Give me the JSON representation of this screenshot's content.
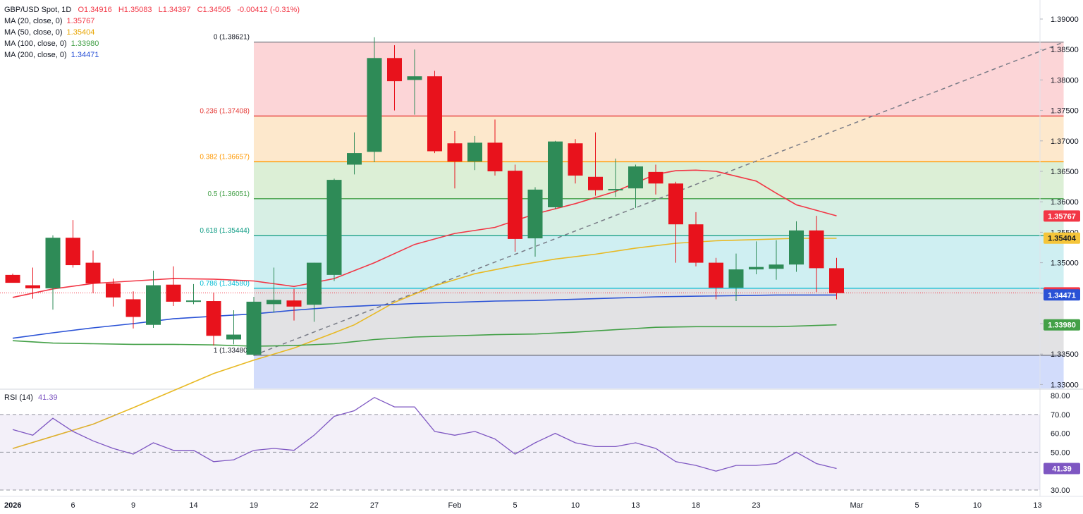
{
  "header": {
    "symbol": "GBP/USD Spot, 1D",
    "open": "O1.34916",
    "high": "H1.35083",
    "low": "L1.34397",
    "close": "C1.34505",
    "change": "-0.00412 (-0.31%)"
  },
  "legend": {
    "ma20": {
      "label": "MA (20, close, 0)",
      "value": "1.35767",
      "color": "#f23645"
    },
    "ma50": {
      "label": "MA (50, close, 0)",
      "value": "1.35404",
      "color": "#e8b923"
    },
    "ma100": {
      "label": "MA (100, close, 0)",
      "value": "1.33980",
      "color": "#43a047"
    },
    "ma200": {
      "label": "MA (200, close, 0)",
      "value": "1.34471",
      "color": "#2a52d6"
    }
  },
  "rsi": {
    "label": "RSI (14)",
    "value": "41.39"
  },
  "chart_data": {
    "type": "candlestick",
    "y_axis_ticks": [
      "1.39000",
      "1.38500",
      "1.38000",
      "1.37500",
      "1.37000",
      "1.36500",
      "1.36000",
      "1.35500",
      "1.35000",
      "1.34500",
      "1.34000",
      "1.33500",
      "1.33000"
    ],
    "ylim": [
      1.3288,
      1.3915
    ],
    "x_tick_labels": [
      {
        "label": "2026",
        "bar": 0
      },
      {
        "label": "6",
        "bar": 3
      },
      {
        "label": "9",
        "bar": 6
      },
      {
        "label": "14",
        "bar": 9
      },
      {
        "label": "19",
        "bar": 12
      },
      {
        "label": "22",
        "bar": 15
      },
      {
        "label": "27",
        "bar": 18
      },
      {
        "label": "Feb",
        "bar": 22
      },
      {
        "label": "5",
        "bar": 25
      },
      {
        "label": "10",
        "bar": 28
      },
      {
        "label": "13",
        "bar": 31
      },
      {
        "label": "18",
        "bar": 34
      },
      {
        "label": "23",
        "bar": 37
      },
      {
        "label": "Mar",
        "bar": 42
      },
      {
        "label": "5",
        "bar": 45
      },
      {
        "label": "10",
        "bar": 48
      },
      {
        "label": "13",
        "bar": 51
      }
    ],
    "candles": [
      {
        "o": 1.348,
        "h": 1.3482,
        "l": 1.3468,
        "c": 1.3467
      },
      {
        "o": 1.3463,
        "h": 1.3492,
        "l": 1.3441,
        "c": 1.3458
      },
      {
        "o": 1.3458,
        "h": 1.3545,
        "l": 1.3423,
        "c": 1.3541
      },
      {
        "o": 1.3541,
        "h": 1.357,
        "l": 1.3492,
        "c": 1.3496
      },
      {
        "o": 1.35,
        "h": 1.352,
        "l": 1.345,
        "c": 1.3466
      },
      {
        "o": 1.3466,
        "h": 1.3474,
        "l": 1.3428,
        "c": 1.3443
      },
      {
        "o": 1.344,
        "h": 1.3453,
        "l": 1.3392,
        "c": 1.3411
      },
      {
        "o": 1.3398,
        "h": 1.3487,
        "l": 1.3393,
        "c": 1.3463
      },
      {
        "o": 1.3464,
        "h": 1.3494,
        "l": 1.3429,
        "c": 1.3436
      },
      {
        "o": 1.3436,
        "h": 1.3465,
        "l": 1.3432,
        "c": 1.3438
      },
      {
        "o": 1.3437,
        "h": 1.3451,
        "l": 1.3364,
        "c": 1.338
      },
      {
        "o": 1.3374,
        "h": 1.3422,
        "l": 1.3366,
        "c": 1.3382
      },
      {
        "o": 1.3349,
        "h": 1.3444,
        "l": 1.3347,
        "c": 1.3436
      },
      {
        "o": 1.3432,
        "h": 1.3492,
        "l": 1.3418,
        "c": 1.3439
      },
      {
        "o": 1.3438,
        "h": 1.3457,
        "l": 1.3405,
        "c": 1.3428
      },
      {
        "o": 1.3431,
        "h": 1.35,
        "l": 1.3403,
        "c": 1.35
      },
      {
        "o": 1.348,
        "h": 1.3638,
        "l": 1.347,
        "c": 1.3636
      },
      {
        "o": 1.3661,
        "h": 1.3714,
        "l": 1.3645,
        "c": 1.368
      },
      {
        "o": 1.3682,
        "h": 1.387,
        "l": 1.3665,
        "c": 1.3836
      },
      {
        "o": 1.3836,
        "h": 1.3857,
        "l": 1.375,
        "c": 1.3798
      },
      {
        "o": 1.38,
        "h": 1.385,
        "l": 1.3743,
        "c": 1.3806
      },
      {
        "o": 1.3806,
        "h": 1.3815,
        "l": 1.368,
        "c": 1.3683
      },
      {
        "o": 1.3696,
        "h": 1.3716,
        "l": 1.3622,
        "c": 1.3666
      },
      {
        "o": 1.3666,
        "h": 1.3708,
        "l": 1.3652,
        "c": 1.3697
      },
      {
        "o": 1.3697,
        "h": 1.3735,
        "l": 1.3643,
        "c": 1.365
      },
      {
        "o": 1.3651,
        "h": 1.3661,
        "l": 1.3518,
        "c": 1.3539
      },
      {
        "o": 1.354,
        "h": 1.3624,
        "l": 1.351,
        "c": 1.362
      },
      {
        "o": 1.3591,
        "h": 1.37,
        "l": 1.3588,
        "c": 1.3699
      },
      {
        "o": 1.3696,
        "h": 1.3703,
        "l": 1.363,
        "c": 1.3643
      },
      {
        "o": 1.3641,
        "h": 1.3714,
        "l": 1.361,
        "c": 1.3619
      },
      {
        "o": 1.362,
        "h": 1.3671,
        "l": 1.3608,
        "c": 1.3621
      },
      {
        "o": 1.3622,
        "h": 1.3661,
        "l": 1.359,
        "c": 1.3658
      },
      {
        "o": 1.3649,
        "h": 1.3661,
        "l": 1.3612,
        "c": 1.363
      },
      {
        "o": 1.363,
        "h": 1.3633,
        "l": 1.35,
        "c": 1.3563
      },
      {
        "o": 1.3563,
        "h": 1.3583,
        "l": 1.3494,
        "c": 1.35
      },
      {
        "o": 1.35,
        "h": 1.3508,
        "l": 1.344,
        "c": 1.3459
      },
      {
        "o": 1.3459,
        "h": 1.3515,
        "l": 1.3437,
        "c": 1.3489
      },
      {
        "o": 1.3489,
        "h": 1.3535,
        "l": 1.3481,
        "c": 1.3493
      },
      {
        "o": 1.349,
        "h": 1.3537,
        "l": 1.3472,
        "c": 1.3497
      },
      {
        "o": 1.3497,
        "h": 1.3568,
        "l": 1.3485,
        "c": 1.3553
      },
      {
        "o": 1.3553,
        "h": 1.3577,
        "l": 1.3452,
        "c": 1.3491
      },
      {
        "o": 1.3491,
        "h": 1.3508,
        "l": 1.344,
        "c": 1.345
      }
    ],
    "moving_averages": [
      {
        "name": "MA (20, close, 0)",
        "color": "#f23645",
        "points": [
          [
            0,
            1.3443
          ],
          [
            2,
            1.3457
          ],
          [
            4,
            1.3466
          ],
          [
            6,
            1.347
          ],
          [
            8,
            1.3474
          ],
          [
            10,
            1.3473
          ],
          [
            12,
            1.347
          ],
          [
            14,
            1.3461
          ],
          [
            16,
            1.3474
          ],
          [
            18,
            1.35
          ],
          [
            20,
            1.353
          ],
          [
            22,
            1.3548
          ],
          [
            24,
            1.3558
          ],
          [
            26,
            1.358
          ],
          [
            28,
            1.3597
          ],
          [
            30,
            1.3617
          ],
          [
            32,
            1.3645
          ],
          [
            33,
            1.3651
          ],
          [
            34,
            1.3652
          ],
          [
            35,
            1.365
          ],
          [
            37,
            1.3634
          ],
          [
            38,
            1.3614
          ],
          [
            39,
            1.3595
          ],
          [
            41,
            1.3577
          ]
        ]
      },
      {
        "name": "MA (50, close, 0)",
        "color": "#e8b923",
        "points": [
          [
            0,
            1.3195
          ],
          [
            2,
            1.3215
          ],
          [
            4,
            1.3235
          ],
          [
            6,
            1.3262
          ],
          [
            8,
            1.329
          ],
          [
            10,
            1.3318
          ],
          [
            12,
            1.334
          ],
          [
            14,
            1.336
          ],
          [
            16,
            1.3385
          ],
          [
            17,
            1.3398
          ],
          [
            19,
            1.3435
          ],
          [
            21,
            1.3462
          ],
          [
            23,
            1.3482
          ],
          [
            25,
            1.3495
          ],
          [
            27,
            1.3506
          ],
          [
            29,
            1.3514
          ],
          [
            31,
            1.3524
          ],
          [
            33,
            1.3532
          ],
          [
            35,
            1.3536
          ],
          [
            37,
            1.3538
          ],
          [
            39,
            1.354
          ],
          [
            41,
            1.354
          ]
        ]
      },
      {
        "name": "MA (100, close, 0)",
        "color": "#43a047",
        "points": [
          [
            0,
            1.3372
          ],
          [
            2,
            1.3368
          ],
          [
            4,
            1.3367
          ],
          [
            6,
            1.3366
          ],
          [
            8,
            1.3366
          ],
          [
            10,
            1.3365
          ],
          [
            12,
            1.3363
          ],
          [
            14,
            1.3364
          ],
          [
            16,
            1.3367
          ],
          [
            18,
            1.3374
          ],
          [
            20,
            1.3378
          ],
          [
            22,
            1.338
          ],
          [
            24,
            1.3382
          ],
          [
            26,
            1.3383
          ],
          [
            28,
            1.3386
          ],
          [
            30,
            1.339
          ],
          [
            32,
            1.3394
          ],
          [
            34,
            1.3395
          ],
          [
            36,
            1.3395
          ],
          [
            38,
            1.3395
          ],
          [
            40,
            1.3397
          ],
          [
            41,
            1.3398
          ]
        ]
      },
      {
        "name": "MA (200, close, 0)",
        "color": "#2a52d6",
        "points": [
          [
            0,
            1.3376
          ],
          [
            2,
            1.3385
          ],
          [
            4,
            1.3393
          ],
          [
            6,
            1.34
          ],
          [
            8,
            1.3408
          ],
          [
            10,
            1.3412
          ],
          [
            12,
            1.3416
          ],
          [
            14,
            1.3422
          ],
          [
            16,
            1.3427
          ],
          [
            18,
            1.343
          ],
          [
            20,
            1.3433
          ],
          [
            22,
            1.3435
          ],
          [
            24,
            1.3437
          ],
          [
            26,
            1.3438
          ],
          [
            28,
            1.344
          ],
          [
            30,
            1.3442
          ],
          [
            32,
            1.3444
          ],
          [
            34,
            1.3445
          ],
          [
            36,
            1.3446
          ],
          [
            38,
            1.3447
          ],
          [
            40,
            1.3447
          ],
          [
            41,
            1.3447
          ]
        ]
      }
    ],
    "fibonacci": {
      "start_bar": 12,
      "end_bar": 52.3,
      "levels": [
        {
          "label": "0 (1.38621)",
          "price": 1.38621,
          "line": "#787b86",
          "fill": "#fcd5d7"
        },
        {
          "label": "0.236 (1.37408)",
          "price": 1.37408,
          "line": "#e53935",
          "fill": "#fde8cc"
        },
        {
          "label": "0.382 (1.36657)",
          "price": 1.36657,
          "line": "#ff9800",
          "fill": "#dcefd6"
        },
        {
          "label": "0.5 (1.36051)",
          "price": 1.36051,
          "line": "#43a047",
          "fill": "#d7efe4"
        },
        {
          "label": "0.618 (1.35444)",
          "price": 1.35444,
          "line": "#089981",
          "fill": "#cfeff2"
        },
        {
          "label": "0.786 (1.34580)",
          "price": 1.3458,
          "line": "#00bcd4",
          "fill": "#e2e2e4"
        },
        {
          "label": "1 (1.33480)",
          "price": 1.3348,
          "line": "#787b86",
          "fill": "#d2dcfb"
        }
      ],
      "bottom_price": 1.3288,
      "label_colors": [
        "#131722",
        "#e53935",
        "#ff9800",
        "#43a047",
        "#089981",
        "#00bcd4",
        "#131722"
      ]
    },
    "trendline": {
      "from": [
        12,
        1.3348
      ],
      "to": [
        52.3,
        1.3862
      ]
    },
    "last_price_line": 1.34505,
    "price_tags": [
      {
        "text": "1.35767",
        "price": 1.35767,
        "bg": "#f23645",
        "fg": "#ffffff"
      },
      {
        "text": "1.35404",
        "price": 1.35404,
        "bg": "#f5c53a",
        "fg": "#131722"
      },
      {
        "text": "1.34505",
        "price": 1.34505,
        "bg": "#f23645",
        "fg": "#ffffff"
      },
      {
        "text": "1.34471",
        "price": 1.34471,
        "bg": "#2a52d6",
        "fg": "#ffffff"
      },
      {
        "text": "1.33980",
        "price": 1.3398,
        "bg": "#43a047",
        "fg": "#ffffff"
      }
    ],
    "rsi": {
      "ticks": [
        "80.00",
        "70.00",
        "60.00",
        "50.00",
        "40.00",
        "30.00"
      ],
      "ylim": [
        27,
        83
      ],
      "bands": [
        70,
        50,
        30
      ],
      "values": [
        62,
        59,
        68,
        61,
        56,
        52,
        49,
        55,
        51,
        51,
        45,
        46,
        51,
        52,
        51,
        59,
        69,
        72,
        79,
        74,
        74,
        61,
        59,
        61,
        57,
        49,
        55,
        60,
        55,
        53,
        53,
        55,
        52,
        45,
        43,
        40,
        43,
        43,
        44,
        50,
        44,
        41.39
      ],
      "tag": {
        "text": "41.39",
        "bg": "#7e57c2",
        "fg": "#ffffff"
      }
    }
  }
}
